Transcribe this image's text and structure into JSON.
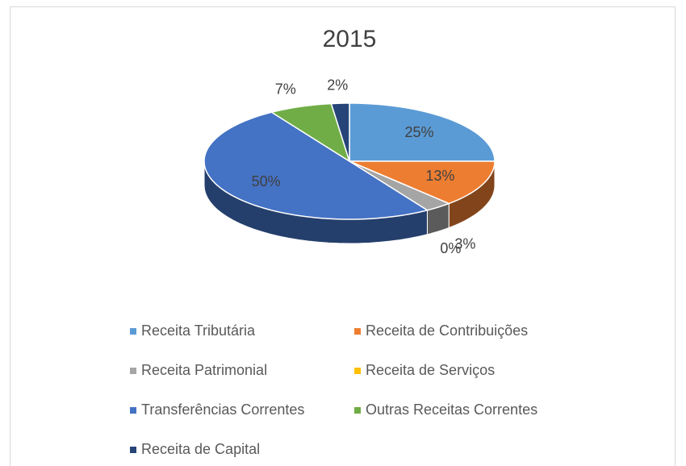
{
  "chart_data": {
    "type": "pie",
    "title": "2015",
    "categories": [
      "Receita Tributária",
      "Receita de Contribuições",
      "Receita Patrimonial",
      "Receita de Serviços",
      "Transferências Correntes",
      "Outras Receitas Correntes",
      "Receita de Capital"
    ],
    "values": [
      25,
      13,
      3,
      0,
      50,
      7,
      2
    ],
    "value_labels": [
      "25%",
      "13%",
      "3%",
      "0%",
      "50%",
      "7%",
      "2%"
    ],
    "colors": [
      "#5b9bd5",
      "#ed7d31",
      "#a5a5a5",
      "#ffc000",
      "#4472c4",
      "#70ad47",
      "#264478"
    ],
    "legend": "bottom"
  }
}
